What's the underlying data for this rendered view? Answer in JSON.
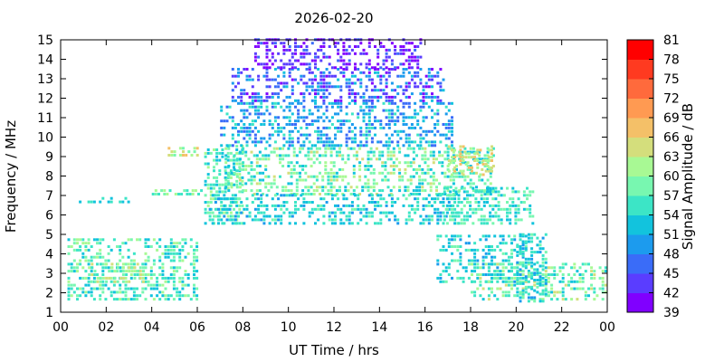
{
  "chart_data": {
    "type": "heatmap",
    "title": "2026-02-20",
    "xlabel": "UT Time / hrs",
    "ylabel": "Frequency / MHz",
    "colorbar_label": "Signal Amplitude / dB",
    "xlim": [
      0,
      24
    ],
    "ylim": [
      1,
      15
    ],
    "x_ticks": [
      "00",
      "02",
      "04",
      "06",
      "08",
      "10",
      "12",
      "14",
      "16",
      "18",
      "20",
      "22",
      "00"
    ],
    "y_ticks": [
      "1",
      "2",
      "3",
      "4",
      "5",
      "6",
      "7",
      "8",
      "9",
      "10",
      "11",
      "12",
      "13",
      "14",
      "15"
    ],
    "colorbar_ticks": [
      "39",
      "42",
      "45",
      "48",
      "51",
      "54",
      "57",
      "60",
      "63",
      "66",
      "69",
      "72",
      "75",
      "78",
      "81"
    ],
    "colorbar_range": [
      39,
      81
    ],
    "colorbar_colors": [
      "#8000ff",
      "#5a3dff",
      "#3a6cf8",
      "#1c9bee",
      "#12c3dd",
      "#3ce5c6",
      "#78f7b0",
      "#a8f994",
      "#d4de7c",
      "#f4c068",
      "#ff9a52",
      "#ff6a3c",
      "#ff3a20",
      "#ff0000"
    ],
    "grid": false,
    "legend": "colorbar-right",
    "regions": [
      {
        "t": [
          0.3,
          6.0
        ],
        "f": [
          1.6,
          4.8
        ],
        "amp": [
          51,
          62
        ]
      },
      {
        "t": [
          1.2,
          3.6
        ],
        "f": [
          2.5,
          3.5
        ],
        "amp": [
          56,
          66
        ]
      },
      {
        "t": [
          0.8,
          3.0
        ],
        "f": [
          6.6,
          6.8
        ],
        "amp": [
          52,
          56
        ]
      },
      {
        "t": [
          4.0,
          6.2
        ],
        "f": [
          7.0,
          7.3
        ],
        "amp": [
          54,
          62
        ]
      },
      {
        "t": [
          4.7,
          6.0
        ],
        "f": [
          9.0,
          9.5
        ],
        "amp": [
          56,
          68
        ]
      },
      {
        "t": [
          6.3,
          8.0
        ],
        "f": [
          5.5,
          9.5
        ],
        "amp": [
          52,
          62
        ]
      },
      {
        "t": [
          7.2,
          19.0
        ],
        "f": [
          7.0,
          9.5
        ],
        "amp": [
          52,
          64
        ]
      },
      {
        "t": [
          7.0,
          17.2
        ],
        "f": [
          9.5,
          11.8
        ],
        "amp": [
          45,
          56
        ]
      },
      {
        "t": [
          7.5,
          16.8
        ],
        "f": [
          11.8,
          13.5
        ],
        "amp": [
          40,
          52
        ]
      },
      {
        "t": [
          8.5,
          15.8
        ],
        "f": [
          13.5,
          15.0
        ],
        "amp": [
          39,
          46
        ]
      },
      {
        "t": [
          6.5,
          17.5
        ],
        "f": [
          5.5,
          7.0
        ],
        "amp": [
          50,
          58
        ]
      },
      {
        "t": [
          16.8,
          20.8
        ],
        "f": [
          5.5,
          7.3
        ],
        "amp": [
          52,
          60
        ]
      },
      {
        "t": [
          16.5,
          20.5
        ],
        "f": [
          2.5,
          5.0
        ],
        "amp": [
          50,
          58
        ]
      },
      {
        "t": [
          18.0,
          24.0
        ],
        "f": [
          1.6,
          3.5
        ],
        "amp": [
          52,
          64
        ]
      },
      {
        "t": [
          20.0,
          21.3
        ],
        "f": [
          1.5,
          5.0
        ],
        "amp": [
          50,
          58
        ]
      },
      {
        "t": [
          17.0,
          19.0
        ],
        "f": [
          8.0,
          9.5
        ],
        "amp": [
          60,
          68
        ]
      }
    ]
  }
}
